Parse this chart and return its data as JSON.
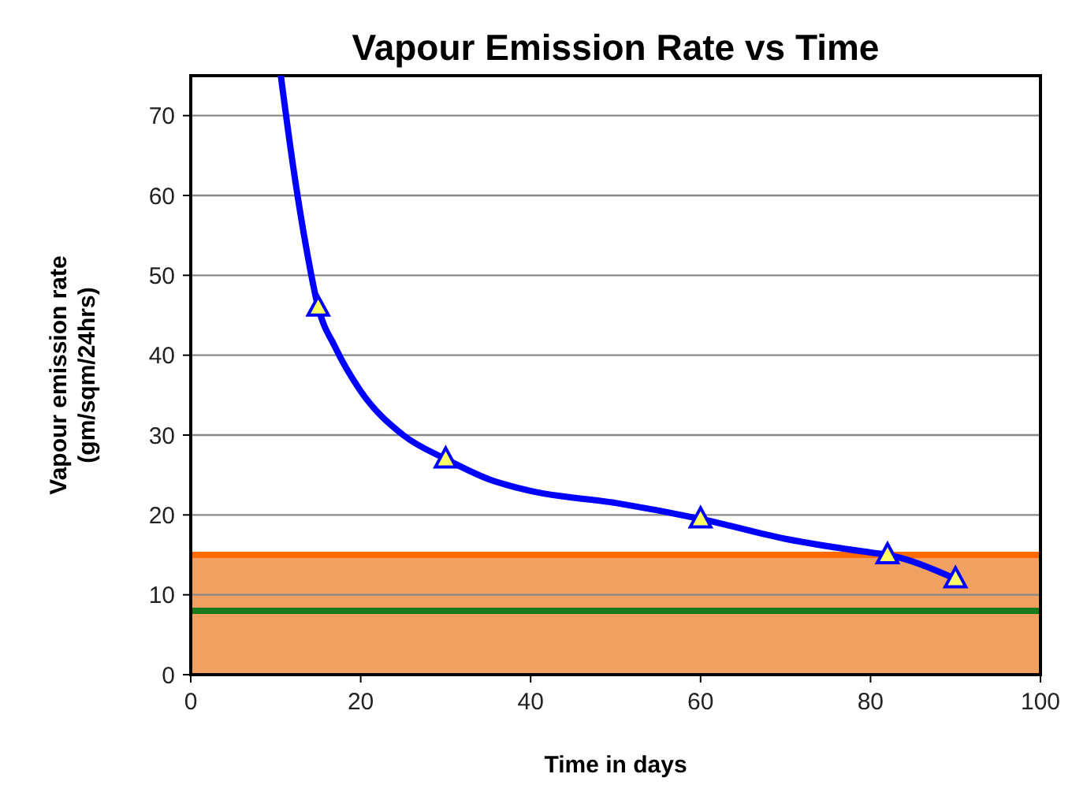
{
  "chart_data": {
    "type": "line",
    "title": "Vapour Emission Rate vs Time",
    "xlabel": "Time in days",
    "ylabel": "Vapour emission rate\n(gm/sqm/24hrs)",
    "xlim": [
      0,
      100
    ],
    "xticks": [
      0,
      20,
      40,
      60,
      80,
      100
    ],
    "ylim": [
      0,
      75
    ],
    "yticks": [
      0,
      10,
      20,
      30,
      40,
      50,
      60,
      70
    ],
    "grid": "y",
    "bands": [
      {
        "axis": "y",
        "from": 0,
        "to": 15,
        "color": "#f0a060"
      }
    ],
    "ref_lines": [
      {
        "axis": "y",
        "value": 15,
        "color": "#ff6a00"
      },
      {
        "axis": "y",
        "value": 8,
        "color": "#1a7a1a"
      }
    ],
    "series": [
      {
        "color": "#0000ff",
        "marker": "none",
        "x": [
          10.6,
          12,
          13.5,
          15,
          17,
          20,
          25,
          30,
          35,
          40,
          50,
          60,
          70,
          80,
          82,
          90
        ],
        "values": [
          75,
          64,
          54,
          46,
          41,
          35.5,
          30,
          27,
          24.5,
          23,
          21.5,
          19.5,
          17,
          15.3,
          15,
          12
        ]
      },
      {
        "type": "scatter",
        "color": "#0000ff",
        "marker": "triangle",
        "x": [
          15,
          30,
          60,
          82,
          90
        ],
        "values": [
          46,
          27,
          19.5,
          15,
          12
        ]
      }
    ]
  }
}
